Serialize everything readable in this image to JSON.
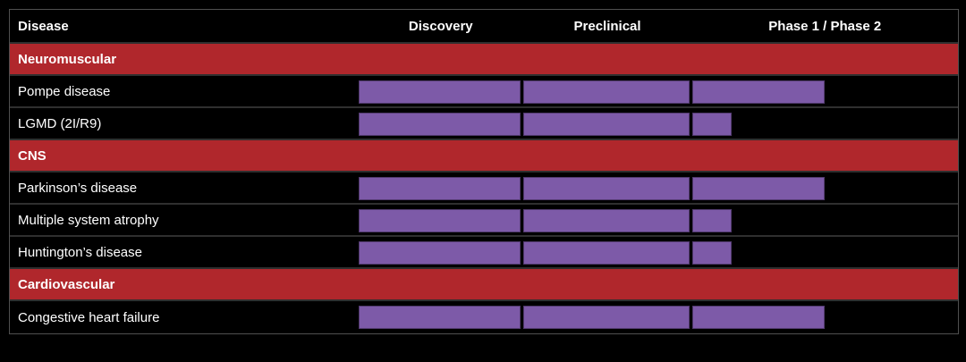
{
  "header": {
    "disease_col": "Disease"
  },
  "colors": {
    "category_bg": "#b0272c",
    "bar_fill": "#7d5aa8",
    "row_bg": "#000000",
    "row_separator": "#2f2f2f",
    "border": "#4f4f4f",
    "text": "#ffffff"
  },
  "chart_data": {
    "type": "bar",
    "orientation": "horizontal",
    "description": "Drug development pipeline: horizontal purple progress bars per disease across development stage columns",
    "columns": [
      {
        "label": "Discovery",
        "start_pct": 0,
        "width_pct": 27.4
      },
      {
        "label": "Preclinical",
        "start_pct": 27.4,
        "width_pct": 28.2
      },
      {
        "label": "Phase 1 / Phase 2",
        "start_pct": 55.6,
        "width_pct": 44.4
      }
    ],
    "groups": [
      {
        "category": "Neuromuscular",
        "programs": [
          {
            "name": "Pompe disease",
            "current_stage": "Phase 1 / Phase 2",
            "stage_fills": [
              1,
              1,
              0.5
            ]
          },
          {
            "name": "LGMD (2I/R9)",
            "current_stage": "Phase 1 / Phase 2",
            "stage_fills": [
              1,
              1,
              0.15
            ]
          }
        ]
      },
      {
        "category": "CNS",
        "programs": [
          {
            "name": "Parkinson’s disease",
            "current_stage": "Phase 1 / Phase 2",
            "stage_fills": [
              1,
              1,
              0.5
            ]
          },
          {
            "name": "Multiple system atrophy",
            "current_stage": "Phase 1 / Phase 2",
            "stage_fills": [
              1,
              1,
              0.15
            ]
          },
          {
            "name": "Huntington’s disease",
            "current_stage": "Phase 1 / Phase 2",
            "stage_fills": [
              1,
              1,
              0.15
            ]
          }
        ]
      },
      {
        "category": "Cardiovascular",
        "programs": [
          {
            "name": "Congestive heart failure",
            "current_stage": "Phase 1 / Phase 2",
            "stage_fills": [
              1,
              1,
              0.5
            ]
          }
        ]
      }
    ],
    "legend": "none"
  }
}
